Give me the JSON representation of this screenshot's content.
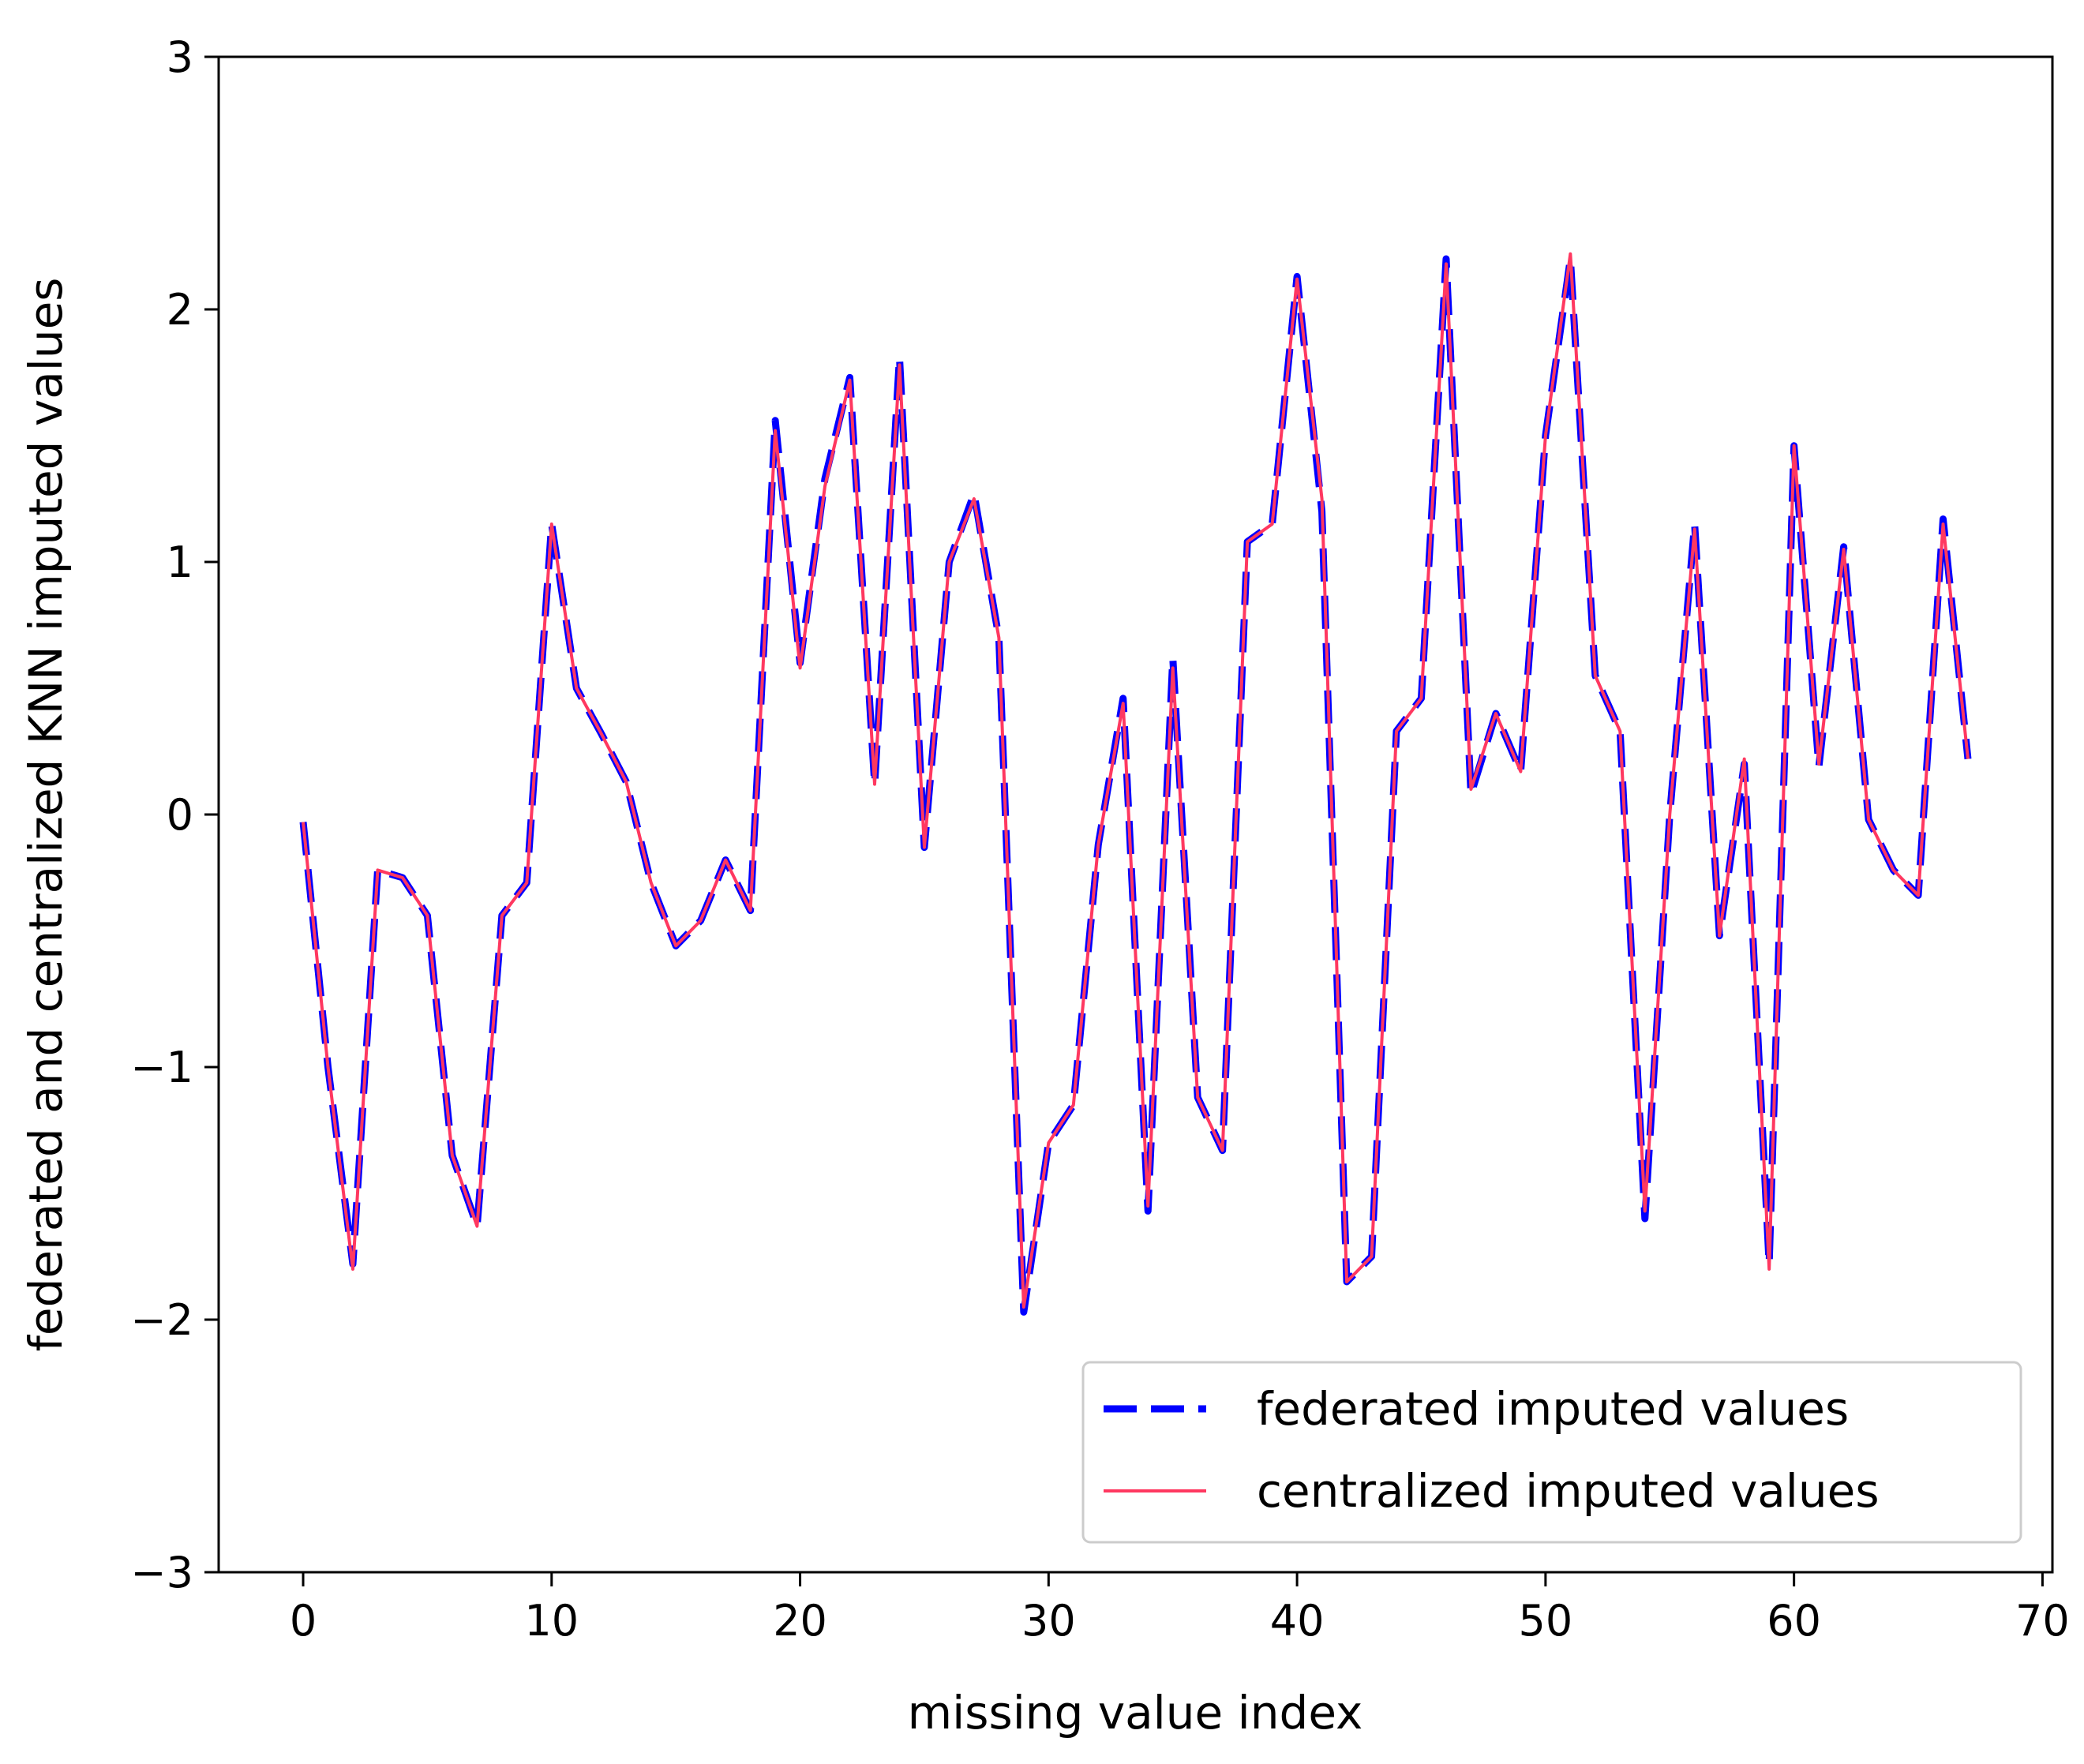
{
  "colors": {
    "federated": "#0000ff",
    "centralized": "#ff3860",
    "axis": "#000000",
    "legend_border": "#cccccc",
    "background": "#ffffff"
  },
  "chart_data": {
    "type": "line",
    "title": "",
    "xlabel": "missing value index",
    "ylabel": "federated and centralized KNN imputed values",
    "xlim": [
      -3.4,
      70.4
    ],
    "ylim": [
      -3,
      3
    ],
    "x_ticks": [
      0,
      10,
      20,
      30,
      40,
      50,
      60,
      70
    ],
    "x_tick_labels": [
      "0",
      "10",
      "20",
      "30",
      "40",
      "50",
      "60",
      "70"
    ],
    "y_ticks": [
      -3,
      -2,
      -1,
      0,
      1,
      2,
      3
    ],
    "y_tick_labels": [
      "−3",
      "−2",
      "−1",
      "0",
      "1",
      "2",
      "3"
    ],
    "grid": false,
    "legend_position": "lower-right",
    "x": [
      0,
      1,
      2,
      3,
      4,
      5,
      6,
      7,
      8,
      9,
      10,
      11,
      12,
      13,
      14,
      15,
      16,
      17,
      18,
      19,
      20,
      21,
      22,
      23,
      24,
      25,
      26,
      27,
      28,
      29,
      30,
      31,
      32,
      33,
      34,
      35,
      36,
      37,
      38,
      39,
      40,
      41,
      42,
      43,
      44,
      45,
      46,
      47,
      48,
      49,
      50,
      51,
      52,
      53,
      54,
      55,
      56,
      57,
      58,
      59,
      60,
      61,
      62,
      63,
      64,
      65,
      66,
      67
    ],
    "series": [
      {
        "name": "federated imputed values",
        "style": "dashed",
        "values": [
          -0.03,
          -1.0,
          -1.78,
          -0.22,
          -0.25,
          -0.4,
          -1.35,
          -1.63,
          -0.4,
          -0.27,
          1.15,
          0.5,
          0.32,
          0.13,
          -0.27,
          -0.52,
          -0.42,
          -0.18,
          -0.38,
          1.56,
          0.6,
          1.33,
          1.73,
          0.12,
          1.81,
          -0.13,
          1.0,
          1.27,
          0.7,
          -1.97,
          -1.3,
          -1.15,
          -0.12,
          0.46,
          -1.57,
          0.62,
          -1.12,
          -1.33,
          1.08,
          1.15,
          2.13,
          1.2,
          -1.85,
          -1.75,
          0.33,
          0.46,
          2.2,
          0.08,
          0.4,
          0.17,
          1.5,
          2.2,
          0.55,
          0.33,
          -1.6,
          0.0,
          1.15,
          -0.48,
          0.2,
          -1.78,
          1.46,
          0.19,
          1.06,
          -0.02,
          -0.22,
          -0.32,
          1.17,
          0.22
        ]
      },
      {
        "name": "centralized imputed values",
        "style": "solid",
        "values": [
          -0.03,
          -1.0,
          -1.8,
          -0.22,
          -0.25,
          -0.4,
          -1.35,
          -1.63,
          -0.4,
          -0.27,
          1.15,
          0.5,
          0.32,
          0.13,
          -0.27,
          -0.52,
          -0.42,
          -0.18,
          -0.38,
          1.52,
          0.58,
          1.3,
          1.72,
          0.12,
          1.78,
          -0.13,
          1.0,
          1.25,
          0.7,
          -1.95,
          -1.3,
          -1.15,
          -0.12,
          0.44,
          -1.55,
          0.58,
          -1.12,
          -1.33,
          1.08,
          1.15,
          2.12,
          1.25,
          -1.85,
          -1.75,
          0.33,
          0.46,
          2.18,
          0.1,
          0.4,
          0.17,
          1.5,
          2.22,
          0.55,
          0.33,
          -1.57,
          0.0,
          1.13,
          -0.48,
          0.22,
          -1.8,
          1.46,
          0.2,
          1.05,
          -0.02,
          -0.22,
          -0.32,
          1.15,
          0.22
        ]
      }
    ]
  }
}
